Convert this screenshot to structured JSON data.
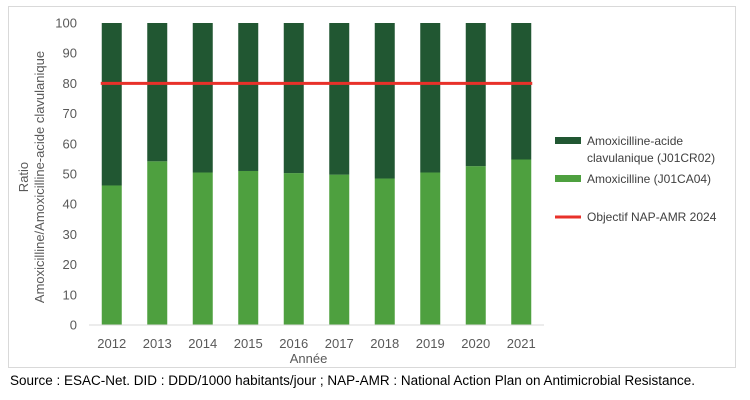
{
  "chart_data": {
    "type": "bar",
    "stacked": true,
    "categories": [
      "2012",
      "2013",
      "2014",
      "2015",
      "2016",
      "2017",
      "2018",
      "2019",
      "2020",
      "2021"
    ],
    "series": [
      {
        "name": "Amoxicilline (J01CA04)",
        "values": [
          46.2,
          54.2,
          50.5,
          51.0,
          50.3,
          49.8,
          48.5,
          50.5,
          52.6,
          54.8
        ],
        "color": "#4ea03f"
      },
      {
        "name": "Amoxicilline-acide clavulanique (J01CR02)",
        "values": [
          53.8,
          45.8,
          49.5,
          49.0,
          49.7,
          50.2,
          51.5,
          49.5,
          47.4,
          45.2
        ],
        "color": "#215732"
      }
    ],
    "target_line": {
      "name": "Objectif NAP-AMR 2024",
      "value": 80,
      "color": "#e8312a"
    },
    "ylim": [
      0,
      100
    ],
    "yticks": [
      0,
      10,
      20,
      30,
      40,
      50,
      60,
      70,
      80,
      90,
      100
    ],
    "xlabel": "Année",
    "ylabel_lines": [
      "Ratio",
      "Amoxicilline/Amoxicilline-acide  clavulanique"
    ],
    "legend": {
      "position": "right",
      "entries": [
        {
          "lines": [
            "Amoxicilline-acide",
            "clavulanique (J01CR02)"
          ],
          "color": "#215732",
          "shape": "box"
        },
        {
          "lines": [
            "Amoxicilline (J01CA04)"
          ],
          "color": "#4ea03f",
          "shape": "box"
        },
        {
          "lines": [
            "Objectif NAP-AMR 2024"
          ],
          "color": "#e8312a",
          "shape": "line"
        }
      ]
    },
    "grid": false
  },
  "source_note": "Source : ESAC-Net. DID : DDD/1000 habitants/jour ; NAP-AMR : National Action Plan on Antimicrobial Resistance."
}
